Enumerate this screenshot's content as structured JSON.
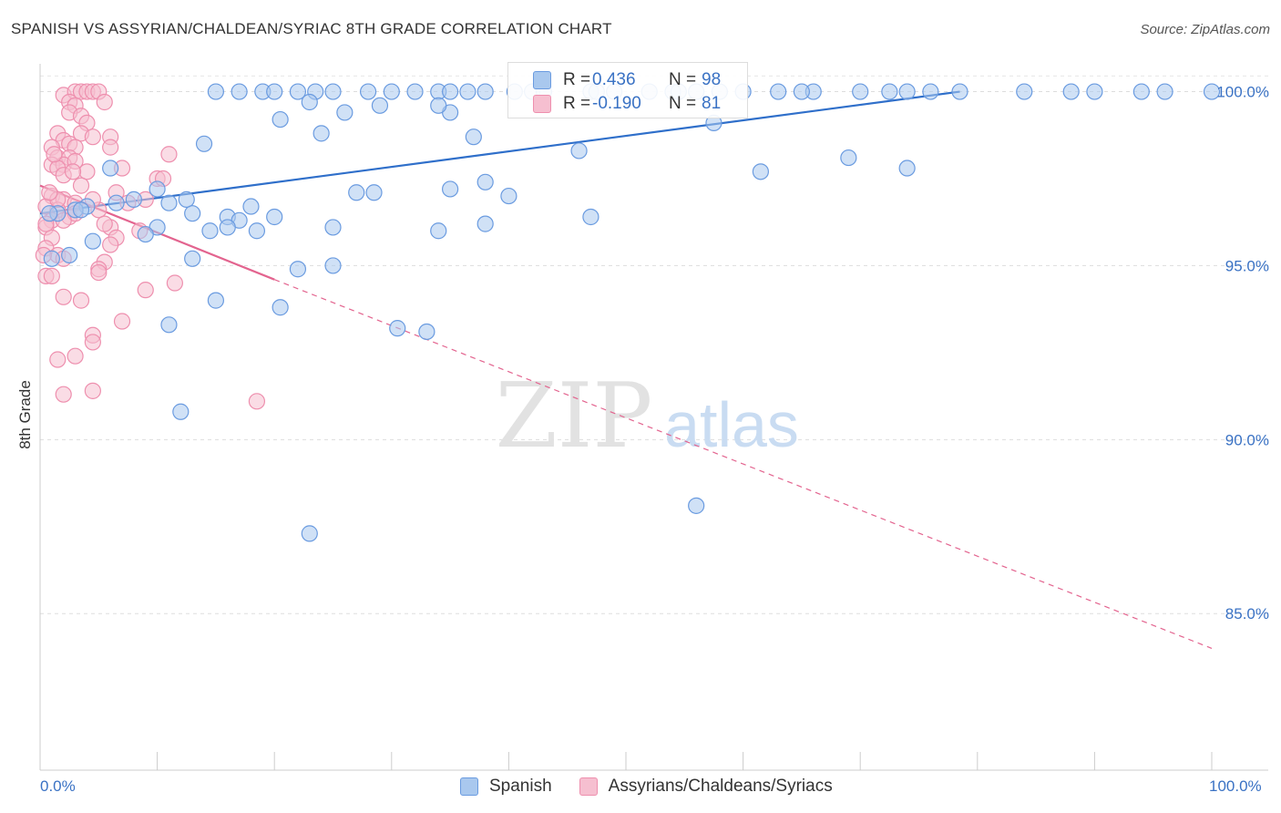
{
  "header": {
    "title": "SPANISH VS ASSYRIAN/CHALDEAN/SYRIAC 8TH GRADE CORRELATION CHART",
    "source": "Source: ZipAtlas.com"
  },
  "watermark": {
    "zip": "ZIP",
    "atlas": "atlas"
  },
  "stats": {
    "row1": {
      "r_label": "R =",
      "r_value": "0.436",
      "n_label": "N =",
      "n_value": "98"
    },
    "row2": {
      "r_label": "R =",
      "r_value": "-0.190",
      "n_label": "N =",
      "n_value": "81"
    }
  },
  "legend": {
    "spanish": "Spanish",
    "assyrian": "Assyrians/Chaldeans/Syriacs"
  },
  "colors": {
    "blue_fill": "#a9c8ee",
    "blue_stroke": "#6a9be0",
    "blue_line": "#2f6fca",
    "pink_fill": "#f6bfd0",
    "pink_stroke": "#ee8fae",
    "pink_line": "#e3648f",
    "axis_text": "#3a72c4"
  },
  "chart_data": {
    "type": "scatter",
    "title": "SPANISH VS ASSYRIAN/CHALDEAN/SYRIAC 8TH GRADE CORRELATION CHART",
    "xlabel": "",
    "ylabel": "8th Grade",
    "xlim": [
      0,
      100
    ],
    "ylim": [
      80.5,
      100.8
    ],
    "x_tick_labels": [
      "0.0%",
      "100.0%"
    ],
    "y_ticks": [
      85,
      90,
      95,
      100
    ],
    "y_tick_labels": [
      "85.0%",
      "90.0%",
      "95.0%",
      "100.0%"
    ],
    "grid": true,
    "legend_position": "bottom",
    "series": [
      {
        "name": "Spanish",
        "color": "#6a9be0",
        "trend": {
          "x": [
            0,
            78.5
          ],
          "y": [
            96.5,
            100.0
          ]
        },
        "points": [
          [
            15,
            100
          ],
          [
            17,
            100
          ],
          [
            19,
            100
          ],
          [
            22,
            100
          ],
          [
            23.5,
            100
          ],
          [
            25,
            100
          ],
          [
            28,
            100
          ],
          [
            30,
            100
          ],
          [
            34,
            100
          ],
          [
            35,
            100
          ],
          [
            38,
            100
          ],
          [
            40.5,
            100
          ],
          [
            42,
            100
          ],
          [
            43,
            100
          ],
          [
            47,
            100
          ],
          [
            49,
            100
          ],
          [
            54,
            100
          ],
          [
            60,
            100
          ],
          [
            63,
            100
          ],
          [
            66,
            100
          ],
          [
            70,
            100
          ],
          [
            76,
            100
          ],
          [
            78.5,
            100
          ],
          [
            84,
            100
          ],
          [
            88,
            100
          ],
          [
            90,
            100
          ],
          [
            94,
            100
          ],
          [
            96,
            100
          ],
          [
            100,
            100
          ],
          [
            72.5,
            100
          ],
          [
            74,
            100
          ],
          [
            65,
            100
          ],
          [
            58,
            100
          ],
          [
            32,
            100
          ],
          [
            36.5,
            100
          ],
          [
            52,
            100
          ],
          [
            54.5,
            100
          ],
          [
            47.5,
            100
          ],
          [
            56,
            100
          ],
          [
            20,
            100
          ],
          [
            20.5,
            99.2
          ],
          [
            35,
            99.4
          ],
          [
            26,
            99.4
          ],
          [
            23,
            99.7
          ],
          [
            29,
            99.6
          ],
          [
            37,
            98.7
          ],
          [
            24,
            98.8
          ],
          [
            14,
            98.5
          ],
          [
            34,
            99.6
          ],
          [
            57.5,
            99.1
          ],
          [
            46,
            98.3
          ],
          [
            69,
            98.1
          ],
          [
            61.5,
            97.7
          ],
          [
            74,
            97.8
          ],
          [
            6,
            97.8
          ],
          [
            10,
            97.2
          ],
          [
            28.5,
            97.1
          ],
          [
            27,
            97.1
          ],
          [
            35,
            97.2
          ],
          [
            38,
            97.4
          ],
          [
            40,
            97.0
          ],
          [
            8,
            96.9
          ],
          [
            12.5,
            96.9
          ],
          [
            11,
            96.8
          ],
          [
            6.5,
            96.8
          ],
          [
            13,
            96.5
          ],
          [
            18,
            96.7
          ],
          [
            4,
            96.7
          ],
          [
            3,
            96.6
          ],
          [
            1.5,
            96.5
          ],
          [
            16,
            96.4
          ],
          [
            20,
            96.4
          ],
          [
            17,
            96.3
          ],
          [
            47,
            96.4
          ],
          [
            10,
            96.1
          ],
          [
            14.5,
            96.0
          ],
          [
            16,
            96.1
          ],
          [
            18.5,
            96.0
          ],
          [
            25,
            96.1
          ],
          [
            34,
            96.0
          ],
          [
            38,
            96.2
          ],
          [
            9,
            95.9
          ],
          [
            4.5,
            95.7
          ],
          [
            13,
            95.2
          ],
          [
            2.5,
            95.3
          ],
          [
            1,
            95.2
          ],
          [
            22,
            94.9
          ],
          [
            25,
            95.0
          ],
          [
            15,
            94.0
          ],
          [
            20.5,
            93.8
          ],
          [
            11,
            93.3
          ],
          [
            30.5,
            93.2
          ],
          [
            33,
            93.1
          ],
          [
            12,
            90.8
          ],
          [
            56,
            88.1
          ],
          [
            23,
            87.3
          ],
          [
            0.8,
            96.5
          ],
          [
            3.5,
            96.6
          ]
        ]
      },
      {
        "name": "Assyrians/Chaldeans/Syriacs",
        "color": "#ee8fae",
        "trend": {
          "x": [
            0,
            20
          ],
          "y": [
            97.3,
            94.6
          ]
        },
        "trend_dashed": {
          "x": [
            20,
            100
          ],
          "y": [
            94.6,
            84.0
          ]
        },
        "points": [
          [
            2,
            99.9
          ],
          [
            3,
            100
          ],
          [
            3.5,
            100
          ],
          [
            4,
            100
          ],
          [
            4.5,
            100
          ],
          [
            5,
            100
          ],
          [
            2.5,
            99.7
          ],
          [
            3,
            99.6
          ],
          [
            5.5,
            99.7
          ],
          [
            2.5,
            99.4
          ],
          [
            3.5,
            99.3
          ],
          [
            4,
            99.1
          ],
          [
            1.5,
            98.8
          ],
          [
            3.5,
            98.8
          ],
          [
            4.5,
            98.7
          ],
          [
            6,
            98.7
          ],
          [
            2,
            98.6
          ],
          [
            1,
            98.4
          ],
          [
            2.5,
            98.5
          ],
          [
            3,
            98.4
          ],
          [
            6,
            98.4
          ],
          [
            1.5,
            98.1
          ],
          [
            2.5,
            98.1
          ],
          [
            1,
            97.9
          ],
          [
            2,
            97.9
          ],
          [
            3,
            98.0
          ],
          [
            11,
            98.2
          ],
          [
            1.5,
            97.8
          ],
          [
            7,
            97.8
          ],
          [
            2,
            97.6
          ],
          [
            4,
            97.7
          ],
          [
            10,
            97.5
          ],
          [
            10.5,
            97.5
          ],
          [
            3.5,
            97.3
          ],
          [
            6.5,
            97.1
          ],
          [
            1,
            97.0
          ],
          [
            2,
            96.9
          ],
          [
            3,
            96.8
          ],
          [
            1.5,
            96.6
          ],
          [
            5,
            96.6
          ],
          [
            0.5,
            96.7
          ],
          [
            2.5,
            96.4
          ],
          [
            1,
            96.3
          ],
          [
            0.5,
            96.1
          ],
          [
            6,
            96.1
          ],
          [
            8.5,
            96.0
          ],
          [
            6.5,
            95.8
          ],
          [
            1,
            95.8
          ],
          [
            0.5,
            95.5
          ],
          [
            1.5,
            95.3
          ],
          [
            2,
            95.2
          ],
          [
            5.5,
            95.1
          ],
          [
            5,
            94.9
          ],
          [
            0.5,
            94.7
          ],
          [
            1,
            94.7
          ],
          [
            5,
            94.8
          ],
          [
            11.5,
            94.5
          ],
          [
            9,
            94.3
          ],
          [
            2,
            94.1
          ],
          [
            3.5,
            94.0
          ],
          [
            7,
            93.4
          ],
          [
            4.5,
            93.0
          ],
          [
            4.5,
            92.8
          ],
          [
            3,
            92.4
          ],
          [
            1.5,
            92.3
          ],
          [
            4.5,
            91.4
          ],
          [
            2,
            91.3
          ],
          [
            18.5,
            91.1
          ],
          [
            0.5,
            96.2
          ],
          [
            1.5,
            96.9
          ],
          [
            9,
            96.9
          ],
          [
            7.5,
            96.8
          ],
          [
            3,
            96.5
          ],
          [
            2,
            96.3
          ],
          [
            4.5,
            96.9
          ],
          [
            1.2,
            98.2
          ],
          [
            0.8,
            97.1
          ],
          [
            5.5,
            96.2
          ],
          [
            6,
            95.6
          ],
          [
            0.3,
            95.3
          ],
          [
            2.8,
            97.7
          ]
        ]
      }
    ]
  }
}
